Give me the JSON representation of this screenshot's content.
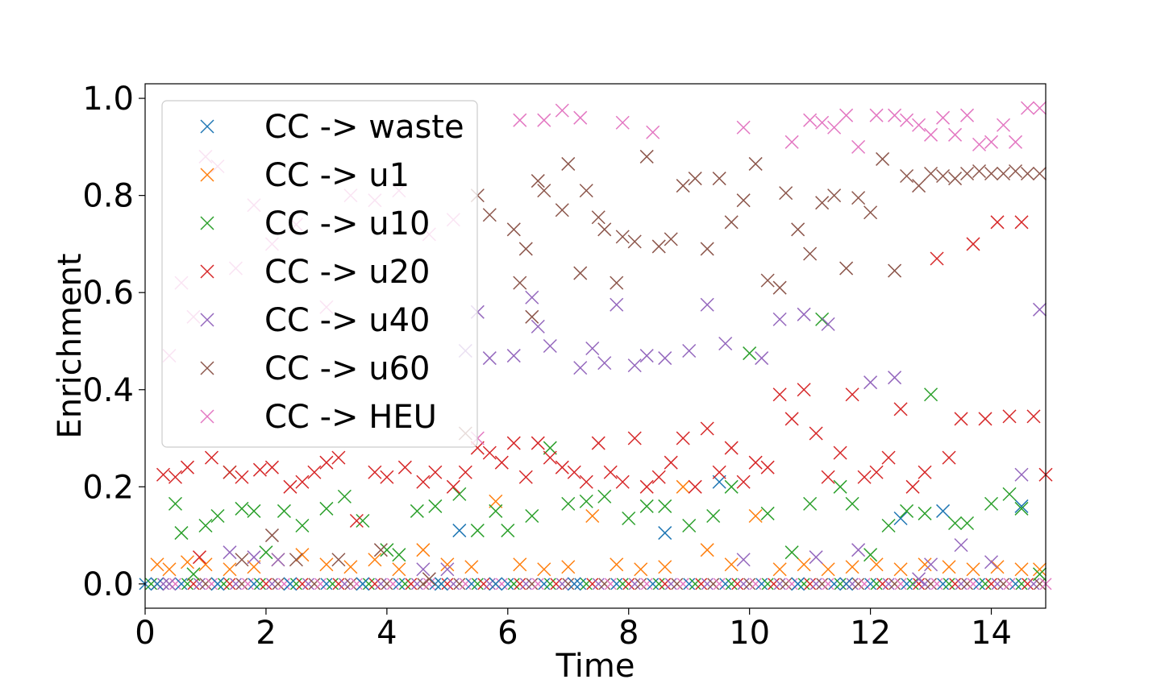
{
  "chart_data": {
    "type": "scatter",
    "title": "",
    "xlabel": "Time",
    "ylabel": "Enrichment",
    "xlim": [
      0,
      14.9
    ],
    "ylim": [
      -0.05,
      1.03
    ],
    "xticks": [
      0,
      2,
      4,
      6,
      8,
      10,
      12,
      14
    ],
    "xtick_labels": [
      "0",
      "2",
      "4",
      "6",
      "8",
      "10",
      "12",
      "14"
    ],
    "yticks": [
      0.0,
      0.2,
      0.4,
      0.6,
      0.8,
      1.0
    ],
    "ytick_labels": [
      "0.0",
      "0.2",
      "0.4",
      "0.6",
      "0.8",
      "1.0"
    ],
    "grid": false,
    "legend_position": "upper-left",
    "marker": "x",
    "series": [
      {
        "name": "CC -> waste",
        "color": "#1f77b4",
        "x": [
          0.2,
          1.2,
          2.4,
          3.6,
          4.9,
          5.2,
          5.8,
          7.1,
          8.6,
          9.5,
          10.8,
          11.6,
          12.5,
          13.2,
          14.5
        ],
        "y": [
          0.0,
          0.0,
          0.0,
          0.0,
          0.0,
          0.11,
          0.0,
          0.0,
          0.105,
          0.21,
          0.0,
          0.0,
          0.135,
          0.15,
          0.16
        ]
      },
      {
        "name": "CC -> u1",
        "color": "#ff7f0e",
        "x": [
          0.2,
          0.4,
          0.7,
          1.0,
          1.4,
          1.8,
          2.2,
          2.6,
          3.0,
          3.4,
          3.8,
          4.2,
          4.6,
          5.0,
          5.4,
          5.8,
          6.2,
          6.6,
          7.0,
          7.4,
          7.8,
          8.2,
          8.6,
          8.9,
          9.3,
          9.7,
          10.1,
          10.5,
          10.9,
          11.3,
          11.7,
          12.1,
          12.5,
          12.9,
          13.3,
          13.7,
          14.1,
          14.5,
          14.8
        ],
        "y": [
          0.04,
          0.03,
          0.045,
          0.04,
          0.03,
          0.035,
          0.05,
          0.06,
          0.04,
          0.035,
          0.05,
          0.03,
          0.07,
          0.04,
          0.035,
          0.17,
          0.04,
          0.03,
          0.035,
          0.14,
          0.04,
          0.03,
          0.035,
          0.2,
          0.07,
          0.04,
          0.14,
          0.03,
          0.04,
          0.03,
          0.035,
          0.04,
          0.03,
          0.04,
          0.035,
          0.03,
          0.035,
          0.03,
          0.03
        ]
      },
      {
        "name": "CC -> u10",
        "color": "#2ca02c",
        "x": [
          0.5,
          0.6,
          0.8,
          1.0,
          1.2,
          1.4,
          1.6,
          1.8,
          2.0,
          2.3,
          2.6,
          3.0,
          3.3,
          3.6,
          4.0,
          4.2,
          4.5,
          4.8,
          5.2,
          5.5,
          5.8,
          6.0,
          6.4,
          6.7,
          7.0,
          7.3,
          7.6,
          8.0,
          8.3,
          8.6,
          9.0,
          9.4,
          9.7,
          10.0,
          10.3,
          10.7,
          11.0,
          11.2,
          11.5,
          11.7,
          12.0,
          12.3,
          12.6,
          12.9,
          13.0,
          13.4,
          13.6,
          14.0,
          14.3,
          14.5,
          14.8
        ],
        "y": [
          0.165,
          0.105,
          0.02,
          0.12,
          0.14,
          0.23,
          0.155,
          0.15,
          0.065,
          0.15,
          0.12,
          0.155,
          0.18,
          0.13,
          0.07,
          0.06,
          0.15,
          0.16,
          0.185,
          0.11,
          0.15,
          0.11,
          0.14,
          0.28,
          0.165,
          0.17,
          0.18,
          0.135,
          0.16,
          0.16,
          0.12,
          0.14,
          0.2,
          0.475,
          0.145,
          0.065,
          0.165,
          0.545,
          0.2,
          0.165,
          0.06,
          0.12,
          0.15,
          0.145,
          0.39,
          0.125,
          0.125,
          0.165,
          0.185,
          0.155,
          0.02
        ]
      },
      {
        "name": "CC -> u20",
        "color": "#d62728",
        "x": [
          0.3,
          0.5,
          0.7,
          0.9,
          1.1,
          1.4,
          1.6,
          1.9,
          2.1,
          2.4,
          2.6,
          2.8,
          3.0,
          3.2,
          3.5,
          3.8,
          4.0,
          4.3,
          4.6,
          4.8,
          5.1,
          5.3,
          5.5,
          5.7,
          5.9,
          6.1,
          6.3,
          6.5,
          6.7,
          6.9,
          7.1,
          7.3,
          7.5,
          7.7,
          7.9,
          8.1,
          8.3,
          8.5,
          8.7,
          8.9,
          9.1,
          9.3,
          9.5,
          9.7,
          9.9,
          10.1,
          10.3,
          10.5,
          10.7,
          10.9,
          11.1,
          11.3,
          11.5,
          11.7,
          11.9,
          12.1,
          12.3,
          12.5,
          12.7,
          12.9,
          13.1,
          13.3,
          13.5,
          13.7,
          13.9,
          14.1,
          14.3,
          14.5,
          14.7,
          14.9
        ],
        "y": [
          0.225,
          0.22,
          0.24,
          0.055,
          0.26,
          0.23,
          0.22,
          0.235,
          0.24,
          0.2,
          0.21,
          0.23,
          0.25,
          0.26,
          0.13,
          0.23,
          0.22,
          0.24,
          0.21,
          0.23,
          0.2,
          0.23,
          0.28,
          0.27,
          0.25,
          0.29,
          0.22,
          0.29,
          0.26,
          0.24,
          0.23,
          0.21,
          0.29,
          0.23,
          0.21,
          0.3,
          0.2,
          0.22,
          0.25,
          0.3,
          0.2,
          0.32,
          0.23,
          0.28,
          0.21,
          0.25,
          0.24,
          0.39,
          0.34,
          0.4,
          0.31,
          0.22,
          0.27,
          0.39,
          0.22,
          0.23,
          0.26,
          0.36,
          0.2,
          0.23,
          0.67,
          0.26,
          0.34,
          0.7,
          0.34,
          0.745,
          0.345,
          0.745,
          0.345,
          0.225
        ]
      },
      {
        "name": "CC -> u40",
        "color": "#9467bd",
        "x": [
          0.4,
          1.4,
          1.8,
          2.2,
          4.6,
          5.0,
          5.3,
          5.5,
          5.7,
          6.1,
          6.4,
          6.5,
          6.7,
          7.2,
          7.4,
          7.6,
          7.8,
          8.1,
          8.3,
          8.6,
          9.0,
          9.3,
          9.6,
          9.9,
          10.2,
          10.5,
          10.9,
          11.1,
          11.3,
          11.8,
          12.0,
          12.4,
          12.8,
          13.0,
          13.5,
          14.0,
          14.5,
          14.8
        ],
        "y": [
          0.0,
          0.065,
          0.055,
          0.05,
          0.03,
          0.03,
          0.48,
          0.56,
          0.465,
          0.47,
          0.59,
          0.53,
          0.49,
          0.445,
          0.485,
          0.455,
          0.575,
          0.45,
          0.47,
          0.465,
          0.48,
          0.575,
          0.495,
          0.05,
          0.465,
          0.545,
          0.555,
          0.055,
          0.535,
          0.07,
          0.415,
          0.425,
          0.01,
          0.04,
          0.08,
          0.045,
          0.225,
          0.565
        ]
      },
      {
        "name": "CC -> u60",
        "color": "#8c564b",
        "x": [
          1.6,
          2.1,
          2.5,
          3.2,
          3.9,
          4.7,
          5.3,
          5.5,
          5.7,
          6.1,
          6.2,
          6.3,
          6.4,
          6.5,
          6.6,
          6.9,
          7.0,
          7.2,
          7.3,
          7.5,
          7.6,
          7.8,
          7.9,
          8.1,
          8.3,
          8.5,
          8.7,
          8.9,
          9.1,
          9.3,
          9.5,
          9.7,
          9.9,
          10.1,
          10.3,
          10.5,
          10.6,
          10.8,
          11.0,
          11.2,
          11.4,
          11.6,
          11.8,
          12.0,
          12.2,
          12.4,
          12.6,
          12.8,
          13.0,
          13.2,
          13.4,
          13.6,
          13.8,
          14.0,
          14.2,
          14.4,
          14.6,
          14.8
        ],
        "y": [
          0.05,
          0.1,
          0.05,
          0.05,
          0.07,
          0.01,
          0.31,
          0.8,
          0.76,
          0.73,
          0.62,
          0.69,
          0.55,
          0.83,
          0.81,
          0.77,
          0.865,
          0.64,
          0.81,
          0.755,
          0.73,
          0.62,
          0.715,
          0.705,
          0.88,
          0.695,
          0.71,
          0.82,
          0.835,
          0.69,
          0.835,
          0.745,
          0.79,
          0.865,
          0.625,
          0.61,
          0.805,
          0.73,
          0.68,
          0.785,
          0.8,
          0.65,
          0.795,
          0.765,
          0.875,
          0.645,
          0.84,
          0.82,
          0.845,
          0.84,
          0.835,
          0.845,
          0.85,
          0.845,
          0.845,
          0.85,
          0.845,
          0.845
        ]
      },
      {
        "name": "CC -> HEU",
        "color": "#e377c2",
        "x": [
          0.4,
          0.6,
          0.8,
          1.0,
          1.2,
          1.5,
          1.8,
          2.1,
          2.5,
          3.0,
          3.4,
          3.8,
          4.2,
          4.7,
          5.1,
          5.5,
          6.2,
          6.6,
          6.9,
          7.2,
          7.9,
          8.4,
          9.9,
          10.7,
          11.0,
          11.2,
          11.4,
          11.6,
          11.8,
          12.1,
          12.4,
          12.6,
          12.8,
          13.0,
          13.2,
          13.4,
          13.6,
          13.8,
          14.0,
          14.2,
          14.4,
          14.6,
          14.8
        ],
        "y": [
          0.47,
          0.62,
          0.55,
          0.88,
          0.86,
          0.65,
          0.78,
          0.7,
          0.74,
          0.57,
          0.8,
          0.79,
          0.81,
          0.72,
          0.75,
          0.3,
          0.955,
          0.955,
          0.975,
          0.96,
          0.95,
          0.93,
          0.94,
          0.91,
          0.955,
          0.95,
          0.94,
          0.965,
          0.9,
          0.965,
          0.965,
          0.955,
          0.945,
          0.925,
          0.96,
          0.925,
          0.965,
          0.905,
          0.91,
          0.945,
          0.91,
          0.98,
          0.98
        ]
      }
    ]
  }
}
